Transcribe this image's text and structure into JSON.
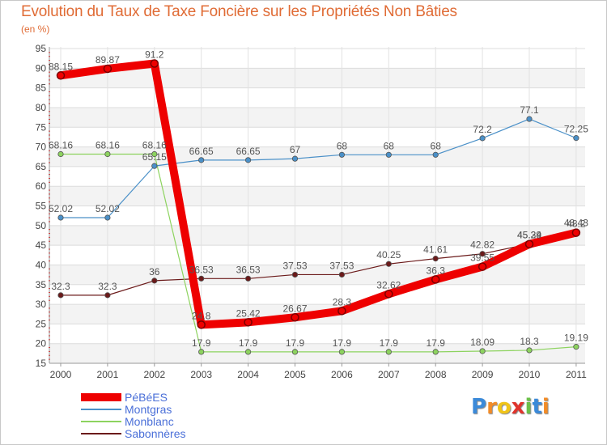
{
  "chart_data": {
    "type": "line",
    "title": "Evolution du Taux de Taxe Foncière sur les Propriétés Non Bâties",
    "subtitle": "(en %)",
    "xlabel": "",
    "ylabel": "",
    "ylim": [
      15,
      95
    ],
    "y_ticks": [
      15,
      20,
      25,
      30,
      35,
      40,
      45,
      50,
      55,
      60,
      65,
      70,
      75,
      80,
      85,
      90,
      95
    ],
    "categories": [
      "2000",
      "2001",
      "2002",
      "2003",
      "2004",
      "2005",
      "2006",
      "2007",
      "2008",
      "2009",
      "2010",
      "2011"
    ],
    "series": [
      {
        "name": "Sabonnères",
        "color": "#6b1a1a",
        "values": [
          32.3,
          32.3,
          36,
          36.53,
          36.53,
          37.53,
          37.53,
          40.25,
          41.61,
          42.82,
          45.34,
          48.43
        ],
        "labels": [
          "32.3",
          "32.3",
          "36",
          "36.53",
          "36.53",
          "37.53",
          "37.53",
          "40.25",
          "41.61",
          "42.82",
          "45.34",
          "48.43"
        ]
      },
      {
        "name": "Monblanc",
        "color": "#8dd35f",
        "values": [
          68.16,
          68.16,
          68.16,
          17.9,
          17.9,
          17.9,
          17.9,
          17.9,
          17.9,
          18.09,
          18.3,
          19.19
        ],
        "labels": [
          "68.16",
          "68.16",
          "68.16",
          "17.9",
          "17.9",
          "17.9",
          "17.9",
          "17.9",
          "17.9",
          "18.09",
          "18.3",
          "19.19"
        ]
      },
      {
        "name": "Montgras",
        "color": "#4a90c8",
        "values": [
          52.02,
          52.02,
          65.15,
          66.65,
          66.65,
          67,
          68,
          68,
          68,
          72.2,
          77.1,
          72.25
        ],
        "labels": [
          "52.02",
          "52.02",
          "65.15",
          "66.65",
          "66.65",
          "67",
          "68",
          "68",
          "68",
          "72.2",
          "77.1",
          "72.25"
        ]
      },
      {
        "name": "PéBéES",
        "color": "#ee0000",
        "values": [
          88.15,
          89.87,
          91.2,
          24.8,
          25.42,
          26.67,
          28.3,
          32.62,
          36.3,
          39.55,
          45.29,
          48.2
        ],
        "labels": [
          "88.15",
          "89.87",
          "91.2",
          "24.8",
          "25.42",
          "26.67",
          "28.3",
          "32.62",
          "36.3",
          "39.55",
          "45.29",
          "48.2"
        ]
      }
    ]
  },
  "legend": [
    {
      "name": "PéBéES",
      "color": "#ee0000"
    },
    {
      "name": "Montgras",
      "color": "#4a90c8"
    },
    {
      "name": "Monblanc",
      "color": "#8dd35f"
    },
    {
      "name": "Sabonnères",
      "color": "#6b1a1a"
    }
  ],
  "logo": {
    "letters": [
      "P",
      "r",
      "o",
      "x",
      "i",
      "t",
      "i"
    ],
    "colors": [
      "#3b8ad9",
      "#f28c28",
      "#f0c419",
      "#e0342c",
      "#6cc04a",
      "#3b8ad9",
      "#f28c28"
    ]
  }
}
